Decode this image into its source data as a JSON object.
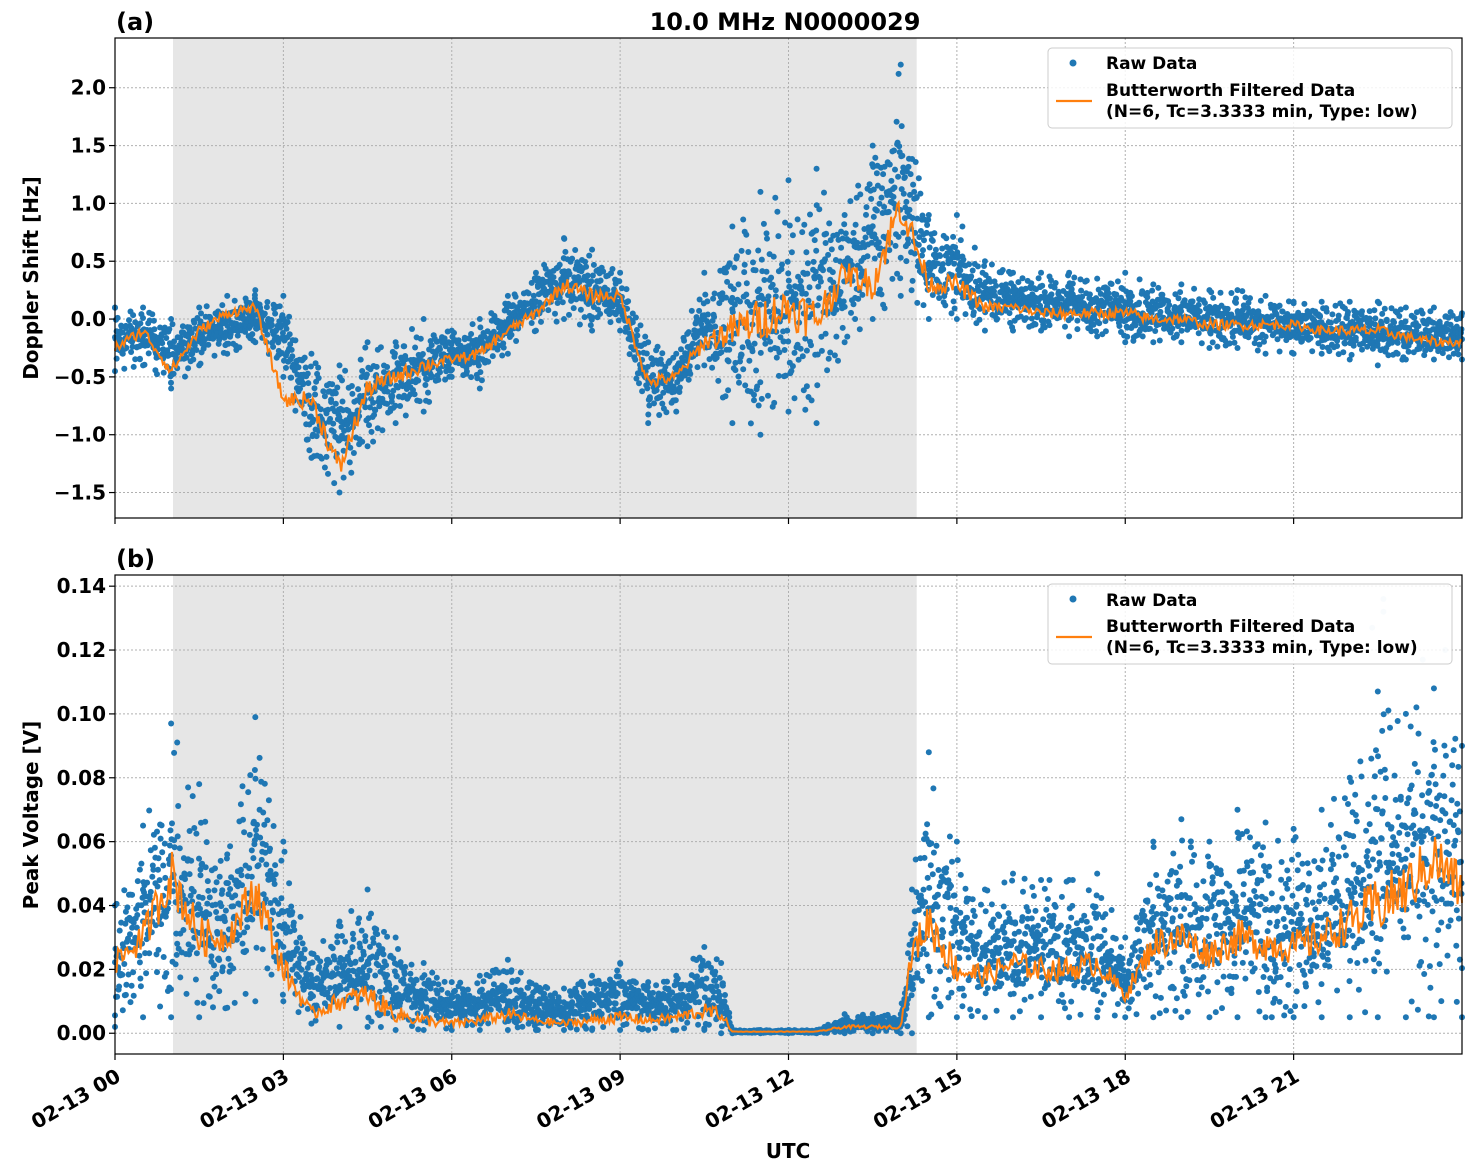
{
  "figure": {
    "title": "10.0 MHz N0000029",
    "xlabel": "UTC"
  },
  "colors": {
    "raw": "#1f77b4",
    "filtered": "#ff7f0e",
    "night_shade": "#e6e6e6"
  },
  "chart_data": [
    {
      "type": "scatter",
      "panel_label": "(a)",
      "ylabel": "Doppler Shift [Hz]",
      "xlim": [
        "02-13 00:00",
        "02-13 24:00"
      ],
      "ylim": [
        -1.72,
        2.43
      ],
      "x_ticks": [
        "02-13 00",
        "02-13 03",
        "02-13 06",
        "02-13 09",
        "02-13 12",
        "02-13 15",
        "02-13 18",
        "02-13 21"
      ],
      "x_tick_labels_visible": false,
      "y_ticks": [
        -1.5,
        -1.0,
        -0.5,
        0.0,
        0.5,
        1.0,
        1.5,
        2.0
      ],
      "y_tick_labels": [
        "−1.5",
        "−1.0",
        "−0.5",
        "0.0",
        "0.5",
        "1.0",
        "1.5",
        "2.0"
      ],
      "shaded_interval": [
        "02-13 01:02",
        "02-13 14:17"
      ],
      "grid": true,
      "legend_position": "top-right",
      "legend": [
        "Raw Data",
        "Butterworth Filtered Data",
        "(N=6, Tc=3.3333 min, Type: low)"
      ],
      "series": [
        {
          "name": "Raw Data",
          "kind": "scatter",
          "x_hours": [
            0.0,
            0.5,
            1.0,
            1.5,
            2.0,
            2.5,
            3.0,
            3.5,
            4.0,
            4.5,
            5.0,
            5.5,
            6.0,
            6.5,
            7.0,
            7.5,
            8.0,
            8.5,
            9.0,
            9.5,
            10.0,
            10.5,
            11.0,
            11.5,
            12.0,
            12.5,
            13.0,
            13.5,
            14.0,
            14.5,
            15.0,
            15.5,
            16.0,
            16.5,
            17.0,
            17.5,
            18.0,
            18.5,
            19.0,
            19.5,
            20.0,
            20.5,
            21.0,
            21.5,
            22.0,
            22.5,
            23.0,
            23.5,
            24.0
          ],
          "y_low": [
            -0.45,
            -0.4,
            -0.6,
            -0.4,
            -0.3,
            -0.2,
            -0.5,
            -1.2,
            -1.5,
            -1.1,
            -0.9,
            -0.8,
            -0.5,
            -0.6,
            -0.3,
            -0.1,
            0.0,
            -0.1,
            -0.1,
            -0.9,
            -0.8,
            -0.4,
            -0.9,
            -1.0,
            -0.8,
            -0.9,
            -0.2,
            0.0,
            0.2,
            0.0,
            0.0,
            -0.1,
            -0.1,
            -0.1,
            -0.15,
            -0.15,
            -0.2,
            -0.2,
            -0.2,
            -0.25,
            -0.25,
            -0.3,
            -0.3,
            -0.3,
            -0.35,
            -0.4,
            -0.35,
            -0.35,
            -0.35
          ],
          "y_high": [
            0.1,
            0.1,
            0.0,
            0.1,
            0.2,
            0.25,
            0.2,
            -0.3,
            -0.4,
            -0.2,
            -0.2,
            0.0,
            -0.1,
            0.0,
            0.2,
            0.4,
            0.7,
            0.6,
            0.4,
            -0.2,
            -0.3,
            0.4,
            0.8,
            1.1,
            1.2,
            1.3,
            0.9,
            1.5,
            2.2,
            0.9,
            0.9,
            0.5,
            0.4,
            0.4,
            0.4,
            0.35,
            0.4,
            0.3,
            0.3,
            0.25,
            0.25,
            0.2,
            0.15,
            0.15,
            0.15,
            0.15,
            0.1,
            0.1,
            0.05
          ]
        },
        {
          "name": "Butterworth Filtered Data",
          "kind": "line",
          "x_hours": [
            0.0,
            0.5,
            1.0,
            1.5,
            2.0,
            2.5,
            3.0,
            3.5,
            4.0,
            4.5,
            5.0,
            5.5,
            6.0,
            6.5,
            7.0,
            7.5,
            8.0,
            8.5,
            9.0,
            9.5,
            10.0,
            10.5,
            11.0,
            11.5,
            12.0,
            12.5,
            13.0,
            13.5,
            14.0,
            14.5,
            15.0,
            15.5,
            16.0,
            16.5,
            17.0,
            17.5,
            18.0,
            18.5,
            19.0,
            19.5,
            20.0,
            20.5,
            21.0,
            21.5,
            22.0,
            22.5,
            23.0,
            23.5,
            24.0
          ],
          "y": [
            -0.25,
            -0.1,
            -0.45,
            -0.1,
            0.05,
            0.1,
            -0.7,
            -0.7,
            -1.3,
            -0.6,
            -0.5,
            -0.4,
            -0.35,
            -0.3,
            -0.1,
            0.05,
            0.3,
            0.2,
            0.2,
            -0.55,
            -0.5,
            -0.2,
            -0.1,
            0.0,
            0.1,
            0.0,
            0.4,
            0.3,
            1.0,
            0.3,
            0.3,
            0.1,
            0.1,
            0.05,
            0.05,
            0.05,
            0.05,
            0.0,
            0.0,
            -0.05,
            -0.05,
            -0.05,
            -0.05,
            -0.1,
            -0.1,
            -0.1,
            -0.15,
            -0.2,
            -0.2
          ]
        }
      ]
    },
    {
      "type": "scatter",
      "panel_label": "(b)",
      "ylabel": "Peak Voltage [V]",
      "xlim": [
        "02-13 00:00",
        "02-13 24:00"
      ],
      "ylim": [
        -0.0065,
        0.1435
      ],
      "x_ticks": [
        "02-13 00",
        "02-13 03",
        "02-13 06",
        "02-13 09",
        "02-13 12",
        "02-13 15",
        "02-13 18",
        "02-13 21"
      ],
      "x_tick_labels_visible": true,
      "y_ticks": [
        0.0,
        0.02,
        0.04,
        0.06,
        0.08,
        0.1,
        0.12,
        0.14
      ],
      "y_tick_labels": [
        "0.00",
        "0.02",
        "0.04",
        "0.06",
        "0.08",
        "0.10",
        "0.12",
        "0.14"
      ],
      "shaded_interval": [
        "02-13 01:02",
        "02-13 14:17"
      ],
      "grid": true,
      "legend_position": "top-right",
      "legend": [
        "Raw Data",
        "Butterworth Filtered Data",
        "(N=6, Tc=3.3333 min, Type: low)"
      ],
      "series": [
        {
          "name": "Raw Data",
          "kind": "scatter",
          "x_hours": [
            0.0,
            0.5,
            1.0,
            1.5,
            2.0,
            2.5,
            3.0,
            3.5,
            4.0,
            4.5,
            5.0,
            5.5,
            6.0,
            6.5,
            7.0,
            7.5,
            8.0,
            8.5,
            9.0,
            9.5,
            10.0,
            10.5,
            10.8,
            11.0,
            11.5,
            12.0,
            12.5,
            13.0,
            13.5,
            14.0,
            14.2,
            14.5,
            15.0,
            15.5,
            16.0,
            16.5,
            17.0,
            17.5,
            18.0,
            18.5,
            19.0,
            19.5,
            20.0,
            20.5,
            21.0,
            21.5,
            22.0,
            22.5,
            23.0,
            23.5,
            24.0
          ],
          "y_low": [
            0.002,
            0.005,
            0.005,
            0.005,
            0.008,
            0.01,
            0.01,
            0.003,
            0.002,
            0.002,
            0.001,
            0.001,
            0.001,
            0.001,
            0.001,
            0.001,
            0.001,
            0.001,
            0.001,
            0.001,
            0.001,
            0.001,
            0.0,
            0.0,
            0.0,
            0.0,
            0.0,
            0.0,
            0.0,
            0.0,
            0.0,
            0.005,
            0.005,
            0.005,
            0.005,
            0.005,
            0.005,
            0.005,
            0.005,
            0.005,
            0.005,
            0.005,
            0.005,
            0.005,
            0.005,
            0.005,
            0.005,
            0.005,
            0.005,
            0.005,
            0.005
          ],
          "y_high": [
            0.04,
            0.065,
            0.097,
            0.078,
            0.056,
            0.099,
            0.06,
            0.025,
            0.035,
            0.045,
            0.03,
            0.022,
            0.016,
            0.018,
            0.023,
            0.015,
            0.014,
            0.018,
            0.022,
            0.016,
            0.018,
            0.027,
            0.022,
            0.001,
            0.001,
            0.001,
            0.001,
            0.006,
            0.006,
            0.006,
            0.045,
            0.088,
            0.06,
            0.045,
            0.05,
            0.048,
            0.048,
            0.05,
            0.03,
            0.06,
            0.067,
            0.06,
            0.07,
            0.066,
            0.064,
            0.07,
            0.08,
            0.107,
            0.1,
            0.108,
            0.09
          ],
          "faint_points": [
            [
              22.6,
              0.136
            ],
            [
              22.6,
              0.132
            ],
            [
              22.4,
              0.127
            ],
            [
              23.3,
              0.117
            ],
            [
              23.7,
              0.12
            ]
          ]
        },
        {
          "name": "Butterworth Filtered Data",
          "kind": "line",
          "x_hours": [
            0.0,
            0.5,
            1.0,
            1.5,
            2.0,
            2.5,
            3.0,
            3.5,
            4.0,
            4.5,
            5.0,
            5.5,
            6.0,
            6.5,
            7.0,
            7.5,
            8.0,
            8.5,
            9.0,
            9.5,
            10.0,
            10.5,
            10.8,
            11.0,
            11.5,
            12.0,
            12.5,
            13.0,
            13.5,
            14.0,
            14.2,
            14.5,
            15.0,
            15.5,
            16.0,
            16.5,
            17.0,
            17.5,
            18.0,
            18.5,
            19.0,
            19.5,
            20.0,
            20.5,
            21.0,
            21.5,
            22.0,
            22.5,
            23.0,
            23.5,
            24.0
          ],
          "y": [
            0.022,
            0.03,
            0.05,
            0.03,
            0.03,
            0.045,
            0.02,
            0.006,
            0.01,
            0.012,
            0.006,
            0.004,
            0.003,
            0.004,
            0.006,
            0.004,
            0.003,
            0.004,
            0.005,
            0.004,
            0.005,
            0.007,
            0.006,
            0.0005,
            0.0005,
            0.0005,
            0.0005,
            0.002,
            0.002,
            0.002,
            0.025,
            0.035,
            0.02,
            0.018,
            0.022,
            0.02,
            0.02,
            0.022,
            0.012,
            0.028,
            0.03,
            0.025,
            0.03,
            0.028,
            0.027,
            0.03,
            0.035,
            0.04,
            0.045,
            0.055,
            0.045
          ]
        }
      ]
    }
  ]
}
